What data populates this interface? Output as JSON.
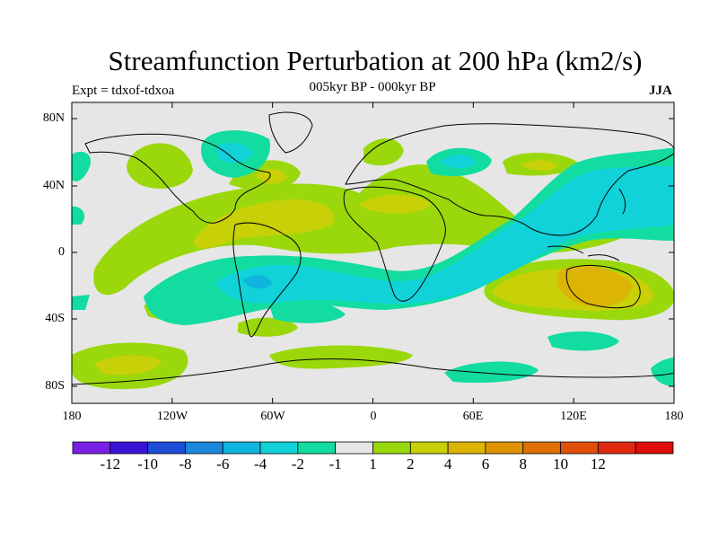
{
  "title": "Streamfunction Perturbation at 200 hPa (km2/s)",
  "subtitle": "005kyr BP - 000kyr BP",
  "experiment": "Expt = tdxof-tdxoa",
  "season": "JJA",
  "y_ticks": [
    "80N",
    "40N",
    "0",
    "40S",
    "80S"
  ],
  "x_ticks": [
    "180",
    "120W",
    "60W",
    "0",
    "60E",
    "120E",
    "180"
  ],
  "colorbar": {
    "colors": [
      "#7a1fe6",
      "#3a14d6",
      "#1e4ed8",
      "#1a86dc",
      "#10b4dc",
      "#10d2d8",
      "#12dca0",
      "#e6e6e6",
      "#9ad80c",
      "#c8d008",
      "#dcb406",
      "#e09404",
      "#e07006",
      "#e05008",
      "#e02a10",
      "#e00c0c"
    ],
    "labels": [
      "-12",
      "-10",
      "-8",
      "-6",
      "-4",
      "-2",
      "-1",
      "1",
      "2",
      "4",
      "6",
      "8",
      "10",
      "12"
    ]
  },
  "field_colors": {
    "neutral": "#e6e6e6",
    "pos1": "#9ad80c",
    "pos2": "#c8d008",
    "pos3": "#dcb406",
    "neg1": "#12dca0",
    "neg2": "#10d2d8",
    "neg3": "#10b4dc"
  }
}
